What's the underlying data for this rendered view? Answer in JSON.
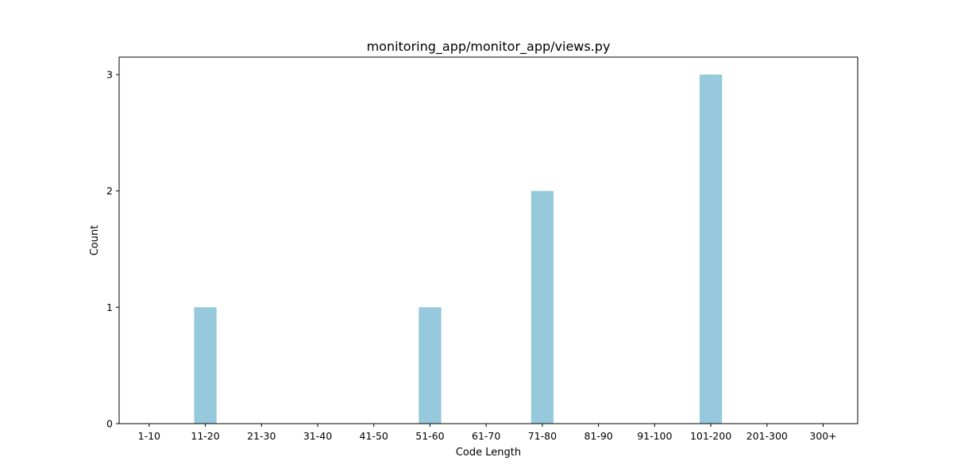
{
  "chart_data": {
    "type": "bar",
    "title": "monitoring_app/monitor_app/views.py",
    "xlabel": "Code Length",
    "ylabel": "Count",
    "categories": [
      "1-10",
      "11-20",
      "21-30",
      "31-40",
      "41-50",
      "51-60",
      "61-70",
      "71-80",
      "81-90",
      "91-100",
      "101-200",
      "201-300",
      "300+"
    ],
    "values": [
      0,
      1,
      0,
      0,
      0,
      1,
      0,
      2,
      0,
      0,
      3,
      0,
      0
    ],
    "ylim": [
      0,
      3.15
    ],
    "yticks": [
      0,
      1,
      2,
      3
    ],
    "grid": false,
    "bar_color": "#96c9dc"
  }
}
